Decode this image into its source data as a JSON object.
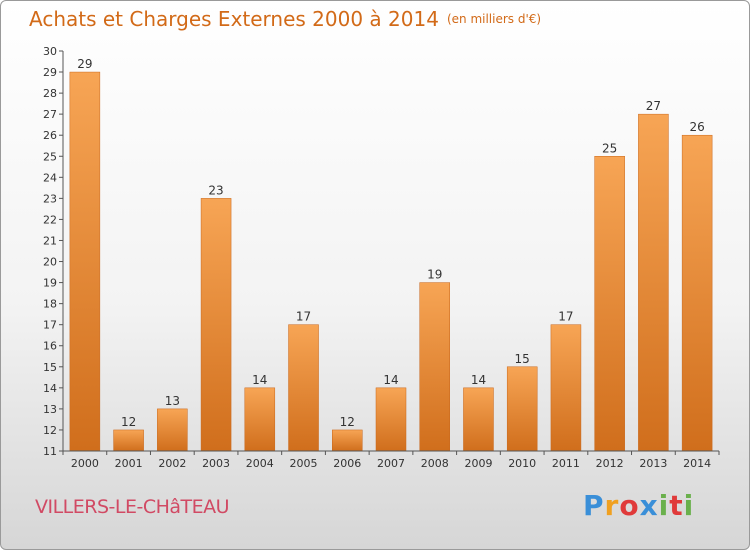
{
  "header": {
    "title": "Achats et Charges Externes 2000 à 2014",
    "unit": "(en milliers d'€)"
  },
  "footer": {
    "commune": "VILLERS-LE-CHâTEAU",
    "logo_letters": [
      "P",
      "r",
      "o",
      "x",
      "i",
      "t",
      "i"
    ],
    "logo_colors": [
      "#3a8fd8",
      "#f0a020",
      "#e03a3a",
      "#3a8fd8",
      "#6ab04c",
      "#e03a3a",
      "#6ab04c"
    ]
  },
  "colors": {
    "bar_top": "#f7a555",
    "bar_bottom": "#d06e1c",
    "title": "#d26a18",
    "commune": "#d14a64"
  },
  "chart_data": {
    "type": "bar",
    "title": "Achats et Charges Externes 2000 à 2014",
    "categories": [
      "2000",
      "2001",
      "2002",
      "2003",
      "2004",
      "2005",
      "2006",
      "2007",
      "2008",
      "2009",
      "2010",
      "2011",
      "2012",
      "2013",
      "2014"
    ],
    "values": [
      29,
      12,
      13,
      23,
      14,
      17,
      12,
      14,
      19,
      14,
      15,
      17,
      25,
      27,
      26
    ],
    "ylim": [
      11,
      30
    ],
    "yticks": [
      11,
      12,
      13,
      14,
      15,
      16,
      17,
      18,
      19,
      20,
      21,
      22,
      23,
      24,
      25,
      26,
      27,
      28,
      29,
      30
    ],
    "grid": false,
    "xlabel": "",
    "ylabel": ""
  }
}
